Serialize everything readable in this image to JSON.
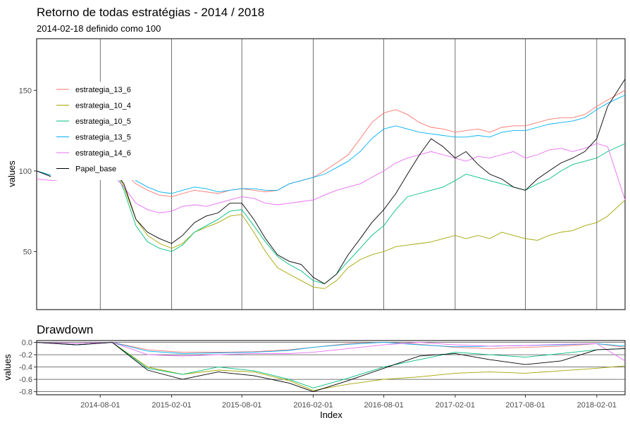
{
  "chart_data": [
    {
      "type": "line",
      "title": "Retorno de todas estratégias - 2014 / 2018",
      "subtitle": "2014-02-18 definido como 100",
      "xlabel": "",
      "ylabel": "values",
      "xlim": [
        "2014-02-18",
        "2018-04-15"
      ],
      "ylim": [
        14,
        182
      ],
      "yticks": [
        50,
        100,
        150
      ],
      "vertical_lines": [
        "2014-08-01",
        "2015-02-01",
        "2015-08-01",
        "2016-02-01",
        "2016-08-01",
        "2017-02-01",
        "2017-08-01",
        "2018-02-01"
      ],
      "grid": false,
      "legend_position": "top-left",
      "x": [
        "2014-02-18",
        "2014-04-01",
        "2014-05-01",
        "2014-06-01",
        "2014-07-01",
        "2014-08-01",
        "2014-09-01",
        "2014-10-01",
        "2014-11-01",
        "2014-12-01",
        "2015-01-01",
        "2015-02-01",
        "2015-03-01",
        "2015-04-01",
        "2015-05-01",
        "2015-06-01",
        "2015-07-01",
        "2015-08-01",
        "2015-09-01",
        "2015-10-01",
        "2015-11-01",
        "2015-12-01",
        "2016-01-01",
        "2016-02-01",
        "2016-03-01",
        "2016-04-01",
        "2016-05-01",
        "2016-06-01",
        "2016-07-01",
        "2016-08-01",
        "2016-09-01",
        "2016-10-01",
        "2016-11-01",
        "2016-12-01",
        "2017-01-01",
        "2017-02-01",
        "2017-03-01",
        "2017-04-01",
        "2017-05-01",
        "2017-06-01",
        "2017-07-01",
        "2017-08-01",
        "2017-09-01",
        "2017-10-01",
        "2017-11-01",
        "2017-12-01",
        "2018-01-01",
        "2018-02-01",
        "2018-03-01",
        "2018-04-15"
      ],
      "series": [
        {
          "name": "estrategia_13_6",
          "color": "#F8766D",
          "values": [
            100,
            97,
            96,
            96,
            98,
            101,
            104,
            99,
            92,
            88,
            85,
            84,
            86,
            88,
            87,
            86,
            88,
            89,
            88,
            87,
            88,
            92,
            94,
            96,
            100,
            105,
            110,
            120,
            130,
            136,
            138,
            135,
            130,
            127,
            126,
            124,
            125,
            126,
            124,
            127,
            128,
            128,
            130,
            132,
            133,
            133,
            135,
            140,
            144,
            150
          ]
        },
        {
          "name": "estrategia_10_4",
          "color": "#A3A500",
          "values": [
            100,
            97,
            97,
            96,
            100,
            104,
            106,
            90,
            70,
            60,
            55,
            52,
            55,
            62,
            65,
            68,
            72,
            73,
            62,
            50,
            40,
            36,
            32,
            28,
            27,
            32,
            40,
            45,
            48,
            50,
            53,
            54,
            55,
            56,
            58,
            60,
            58,
            60,
            58,
            62,
            60,
            58,
            57,
            60,
            62,
            63,
            66,
            68,
            72,
            82
          ]
        },
        {
          "name": "estrategia_10_5",
          "color": "#00BF7D",
          "values": [
            100,
            97,
            97,
            96,
            100,
            103,
            105,
            88,
            66,
            56,
            52,
            50,
            54,
            62,
            66,
            70,
            75,
            76,
            66,
            56,
            47,
            42,
            38,
            32,
            30,
            36,
            44,
            52,
            60,
            66,
            76,
            84,
            86,
            88,
            90,
            94,
            98,
            96,
            94,
            92,
            90,
            88,
            92,
            95,
            100,
            104,
            106,
            108,
            112,
            117
          ]
        },
        {
          "name": "estrategia_13_5",
          "color": "#00B0F6",
          "values": [
            100,
            97,
            96,
            96,
            98,
            102,
            104,
            100,
            94,
            90,
            87,
            86,
            88,
            90,
            89,
            87,
            88,
            89,
            89,
            88,
            88,
            92,
            94,
            96,
            98,
            102,
            106,
            112,
            120,
            126,
            128,
            126,
            124,
            123,
            122,
            121,
            121,
            122,
            121,
            124,
            125,
            125,
            127,
            129,
            130,
            131,
            133,
            138,
            142,
            147
          ]
        },
        {
          "name": "estrategia_14_6",
          "color": "#E76BF3",
          "values": [
            95,
            94,
            95,
            96,
            97,
            98,
            98,
            90,
            80,
            76,
            74,
            75,
            78,
            79,
            78,
            80,
            82,
            84,
            83,
            80,
            79,
            80,
            81,
            82,
            85,
            88,
            90,
            92,
            96,
            100,
            105,
            108,
            110,
            112,
            110,
            108,
            106,
            109,
            108,
            110,
            112,
            108,
            110,
            113,
            114,
            112,
            114,
            117,
            115,
            82
          ]
        },
        {
          "name": "Papel_base",
          "color": "#000000",
          "values": [
            100,
            96,
            100,
            104,
            108,
            100,
            102,
            92,
            70,
            62,
            58,
            55,
            60,
            68,
            72,
            74,
            80,
            80,
            70,
            58,
            48,
            44,
            42,
            34,
            30,
            36,
            48,
            58,
            68,
            76,
            86,
            98,
            110,
            120,
            115,
            108,
            112,
            104,
            98,
            95,
            90,
            88,
            95,
            100,
            105,
            108,
            112,
            120,
            140,
            157
          ]
        }
      ]
    },
    {
      "type": "line",
      "title": "Drawdown",
      "xlabel": "Index",
      "ylabel": "values",
      "xlim": [
        "2014-02-18",
        "2018-04-15"
      ],
      "ylim": [
        -0.85,
        0.03
      ],
      "yticks": [
        0.0,
        -0.2,
        -0.4,
        -0.6,
        -0.8
      ],
      "ytick_labels": [
        "0.0",
        "-0.2",
        "-0.4",
        "-0.6",
        "-0.8"
      ],
      "xticks": [
        "2014-08-01",
        "2015-02-01",
        "2015-08-01",
        "2016-02-01",
        "2016-08-01",
        "2017-02-01",
        "2017-08-01",
        "2018-02-01"
      ],
      "hlines": [
        0.0,
        -0.2,
        -0.4,
        -0.6,
        -0.8
      ],
      "x": [
        "2014-02-18",
        "2014-06-01",
        "2014-09-01",
        "2014-12-01",
        "2015-03-01",
        "2015-06-01",
        "2015-09-01",
        "2015-12-01",
        "2016-02-01",
        "2016-05-01",
        "2016-08-01",
        "2016-11-01",
        "2017-02-01",
        "2017-05-01",
        "2017-08-01",
        "2017-11-01",
        "2018-02-01",
        "2018-04-15"
      ],
      "series": [
        {
          "name": "estrategia_13_6",
          "color": "#F8766D",
          "values": [
            0,
            -0.04,
            0,
            -0.12,
            -0.16,
            -0.16,
            -0.15,
            -0.12,
            -0.08,
            -0.02,
            0,
            -0.03,
            -0.08,
            -0.1,
            -0.08,
            -0.06,
            -0.02,
            -0.08
          ]
        },
        {
          "name": "estrategia_10_4",
          "color": "#A3A500",
          "values": [
            0,
            -0.04,
            0,
            -0.4,
            -0.52,
            -0.45,
            -0.48,
            -0.62,
            -0.78,
            -0.68,
            -0.6,
            -0.56,
            -0.5,
            -0.48,
            -0.5,
            -0.46,
            -0.42,
            -0.38
          ]
        },
        {
          "name": "estrategia_10_5",
          "color": "#00BF7D",
          "values": [
            0,
            -0.04,
            0,
            -0.42,
            -0.52,
            -0.4,
            -0.46,
            -0.6,
            -0.74,
            -0.58,
            -0.4,
            -0.28,
            -0.16,
            -0.2,
            -0.24,
            -0.18,
            -0.12,
            -0.1
          ]
        },
        {
          "name": "estrategia_13_5",
          "color": "#00B0F6",
          "values": [
            0,
            -0.04,
            0,
            -0.14,
            -0.18,
            -0.17,
            -0.16,
            -0.13,
            -0.08,
            -0.03,
            0,
            -0.04,
            -0.07,
            -0.06,
            -0.05,
            -0.04,
            -0.02,
            -0.06
          ]
        },
        {
          "name": "estrategia_14_6",
          "color": "#E76BF3",
          "values": [
            0,
            -0.02,
            0,
            -0.2,
            -0.22,
            -0.2,
            -0.18,
            -0.18,
            -0.16,
            -0.1,
            -0.04,
            0,
            -0.04,
            -0.06,
            -0.05,
            -0.03,
            -0.02,
            -0.3
          ]
        },
        {
          "name": "Papel_base",
          "color": "#000000",
          "values": [
            0,
            -0.04,
            0,
            -0.45,
            -0.6,
            -0.48,
            -0.54,
            -0.66,
            -0.8,
            -0.62,
            -0.42,
            -0.22,
            -0.18,
            -0.28,
            -0.36,
            -0.3,
            -0.12,
            -0.1
          ]
        }
      ]
    }
  ]
}
